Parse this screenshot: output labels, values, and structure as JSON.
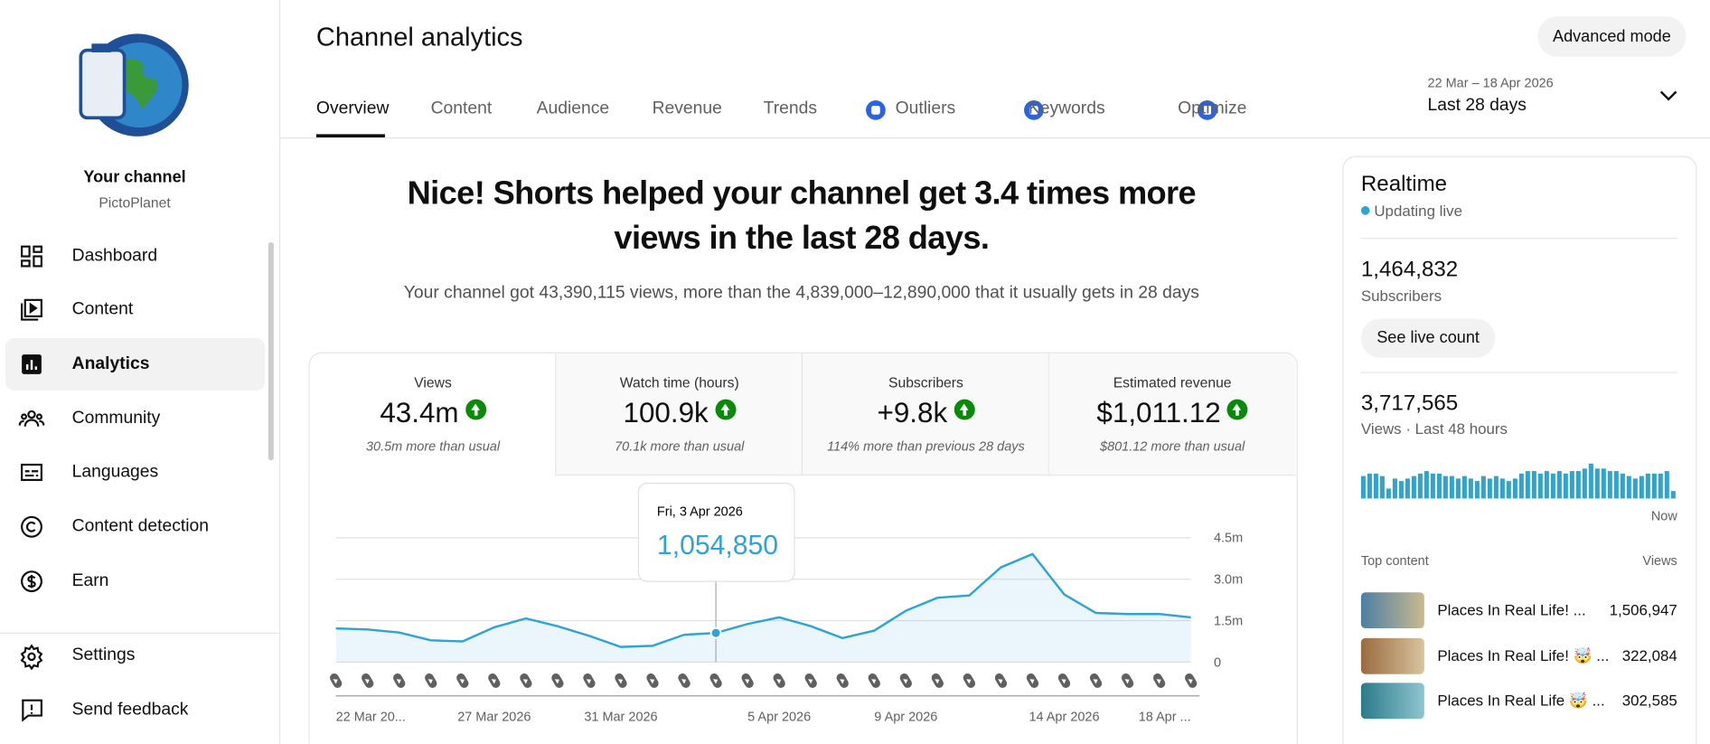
{
  "sidebar": {
    "channel_label": "Your channel",
    "handle": "PictoPlanet",
    "nav": [
      "Dashboard",
      "Content",
      "Analytics",
      "Community",
      "Languages",
      "Content detection",
      "Earn"
    ],
    "footer": [
      "Settings",
      "Send feedback"
    ]
  },
  "header": {
    "title": "Channel analytics",
    "button": "Advanced mode",
    "tabs": [
      "Overview",
      "Content",
      "Audience",
      "Revenue",
      "Trends",
      "Outliers",
      "Keywords",
      "Optimize"
    ],
    "date_range": "22 Mar – 18 Apr 2026",
    "period": "Last 28 days"
  },
  "summary": {
    "headline": "Nice! Shorts helped your channel get 3.4 times more views in the last 28 days.",
    "detail": "Your channel got 43,390,115 views, more than the 4,839,000–12,890,000 that it usually gets in 28 days"
  },
  "cards": [
    {
      "label": "Views",
      "value": "43.4m",
      "note": "30.5m more than usual"
    },
    {
      "label": "Watch time (hours)",
      "value": "100.9k",
      "note": "70.1k more than usual"
    },
    {
      "label": "Subscribers",
      "value": "+9.8k",
      "note": "114% more than previous 28 days"
    },
    {
      "label": "Estimated revenue",
      "value": "$1,011.12",
      "note": "$801.12 more than usual"
    }
  ],
  "realtime": {
    "title": "Realtime",
    "status": "Updating live",
    "subscribers": "1,464,832",
    "subscribers_label": "Subscribers",
    "button": "See live count",
    "views": "3,717,565",
    "views_label": "Views · Last 48 hours",
    "now_label": "Now",
    "top_content_label": "Top content",
    "views_column": "Views",
    "items": [
      {
        "title": "Places In Real Life! ...",
        "views": "1,506,947"
      },
      {
        "title": "Places In Real Life! 🤯 ...",
        "views": "322,084"
      },
      {
        "title": "Places In Real Life 🤯 ...",
        "views": "302,585"
      }
    ]
  },
  "chart_data": [
    {
      "type": "line",
      "color": "#2fa3d6",
      "categories": [
        "22 Mar 20...",
        null,
        null,
        null,
        null,
        "27 Mar 2026",
        null,
        null,
        null,
        "31 Mar 2026",
        null,
        null,
        null,
        null,
        "5 Apr 2026",
        null,
        null,
        null,
        "9 Apr 2026",
        null,
        null,
        null,
        null,
        "14 Apr 2026",
        null,
        null,
        null,
        "18 Apr ..."
      ],
      "values": [
        1220000,
        1180000,
        1070000,
        790000,
        750000,
        1260000,
        1580000,
        1300000,
        950000,
        550000,
        590000,
        990000,
        1054850,
        1380000,
        1620000,
        1300000,
        870000,
        1140000,
        1860000,
        2330000,
        2410000,
        3430000,
        3910000,
        2450000,
        1780000,
        1740000,
        1740000,
        1620000
      ],
      "value_labels": [
        null,
        null,
        null,
        null,
        null,
        null,
        null,
        null,
        null,
        null,
        null,
        null,
        "1,054,850",
        null,
        null,
        null,
        null,
        null,
        null,
        null,
        null,
        null,
        null,
        null,
        null,
        null,
        null,
        null
      ],
      "tooltip_title": "Fri, 3 Apr 2026",
      "ylim": [
        0,
        4500000
      ],
      "yticks": [
        {
          "value": 0,
          "label": "0"
        },
        {
          "value": 1500000,
          "label": "1.5m"
        },
        {
          "value": 3000000,
          "label": "3.0m"
        },
        {
          "value": 4500000,
          "label": "4.5m"
        }
      ],
      "grid": true
    },
    {
      "type": "bar",
      "color": "#31a3cf",
      "values": [
        18,
        20,
        20,
        18,
        8,
        16,
        14,
        16,
        18,
        20,
        22,
        20,
        20,
        18,
        18,
        16,
        18,
        16,
        14,
        18,
        16,
        18,
        16,
        14,
        16,
        20,
        22,
        22,
        20,
        22,
        20,
        22,
        20,
        22,
        22,
        24,
        28,
        24,
        24,
        22,
        22,
        20,
        18,
        16,
        18,
        20,
        20,
        20,
        22,
        6
      ]
    }
  ]
}
